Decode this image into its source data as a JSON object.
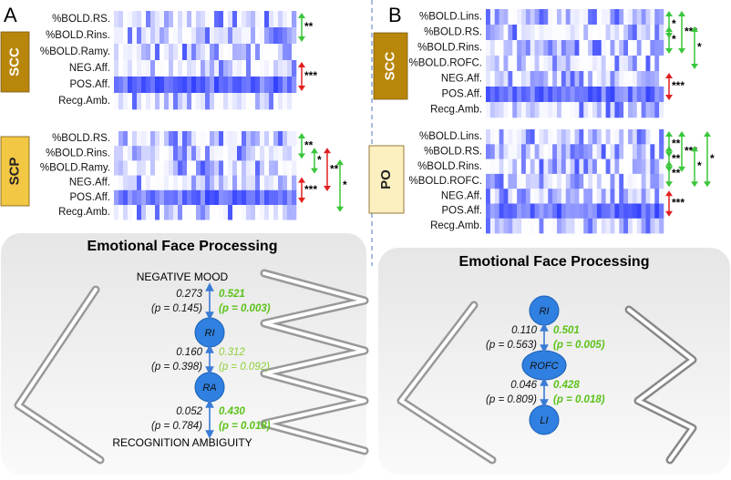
{
  "panels": [
    {
      "letter": "A",
      "groups": [
        {
          "label": "SCC",
          "rows": [
            "%BOLD.RS.",
            "%BOLD.Rins.",
            "%BOLD.Ramy.",
            "NEG.Aff.",
            "POS.Aff.",
            "Recg.Amb."
          ],
          "markers": [
            "**",
            "***"
          ]
        },
        {
          "label": "SCP",
          "rows": [
            "%BOLD.RS.",
            "%BOLD.Rins.",
            "%BOLD.Ramy.",
            "NEG.Aff.",
            "POS.Aff.",
            "Recg.Amb."
          ],
          "markers": [
            "**",
            "*",
            "**",
            "*",
            "***"
          ]
        }
      ],
      "box": {
        "title": "Emotional Face Processing",
        "top": "NEGATIVE MOOD",
        "bottom": "RECOGNITION AMBIGUITY",
        "nodes": [
          "RI",
          "RA"
        ],
        "stats": [
          {
            "left": [
              "0.273",
              "(p = 0.145)"
            ],
            "right": [
              "0.521",
              "(p = 0.003)"
            ],
            "bold": true
          },
          {
            "left": [
              "0.160",
              "(p = 0.398)"
            ],
            "right": [
              "0.312",
              "(p = 0.092)"
            ],
            "bold": false
          },
          {
            "left": [
              "0.052",
              "(p = 0.784)"
            ],
            "right": [
              "0.430",
              "(p = 0.018)"
            ],
            "bold": true
          }
        ]
      }
    },
    {
      "letter": "B",
      "groups": [
        {
          "label": "SCC",
          "rows": [
            "%BOLD.Lins.",
            "%BOLD.RS.",
            "%BOLD.Rins.",
            "%BOLD.ROFC.",
            "NEG.Aff.",
            "POS.Aff.",
            "Recg.Amb."
          ],
          "markers": [
            "*",
            "*",
            "***",
            "*",
            "***"
          ]
        },
        {
          "label": "PO",
          "rows": [
            "%BOLD.Lins.",
            "%BOLD.RS.",
            "%BOLD.Rins.",
            "%BOLD.ROFC.",
            "NEG.Aff.",
            "POS.Aff.",
            "Recg.Amb."
          ],
          "markers": [
            "**",
            "**",
            "**",
            "***",
            "*",
            "*",
            "***"
          ]
        }
      ],
      "box": {
        "title": "Emotional Face Processing",
        "nodes": [
          "RI",
          "ROFC",
          "LI"
        ],
        "stats": [
          {
            "left": [
              "0.110",
              "(p = 0.563)"
            ],
            "right": [
              "0.501",
              "(p = 0.005)"
            ],
            "bold": true
          },
          {
            "left": [
              "0.046",
              "(p = 0.809)"
            ],
            "right": [
              "0.428",
              "(p = 0.018)"
            ],
            "bold": true
          }
        ]
      }
    }
  ]
}
